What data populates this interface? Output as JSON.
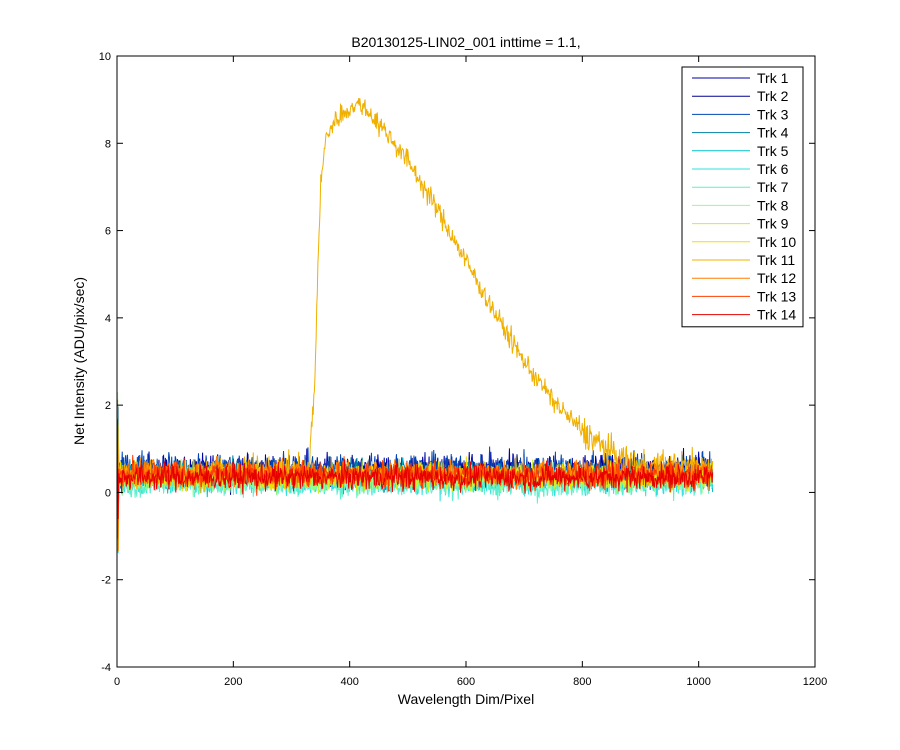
{
  "chart_data": {
    "type": "line",
    "title": "B20130125-LIN02_001 inttime = 1.1,",
    "xlabel": "Wavelength Dim/Pixel",
    "ylabel": "Net Intensity (ADU/pix/sec)",
    "xlim": [
      0,
      1200
    ],
    "ylim": [
      -4,
      10
    ],
    "x_ticks": [
      0,
      200,
      400,
      600,
      800,
      1000,
      1200
    ],
    "y_ticks": [
      -4,
      -2,
      0,
      2,
      4,
      6,
      8,
      10
    ],
    "x_tick_labels": [
      "0",
      "200",
      "400",
      "600",
      "800",
      "1000",
      "1200"
    ],
    "y_tick_labels": [
      "-4",
      "-2",
      "0",
      "2",
      "4",
      "6",
      "8",
      "10"
    ],
    "grid": false,
    "legend_position": "top-right",
    "series": [
      {
        "name": "Trk 1",
        "color": "#0000a6",
        "baseline": 0.5,
        "noise": 0.35
      },
      {
        "name": "Trk 2",
        "color": "#00008f",
        "baseline": 0.45,
        "noise": 0.3
      },
      {
        "name": "Trk 3",
        "color": "#0047b5",
        "baseline": 0.55,
        "noise": 0.35
      },
      {
        "name": "Trk 4",
        "color": "#007fa0",
        "baseline": 0.4,
        "noise": 0.3
      },
      {
        "name": "Trk 5",
        "color": "#00bfc8",
        "baseline": 0.35,
        "noise": 0.3
      },
      {
        "name": "Trk 6",
        "color": "#2fe0e0",
        "baseline": 0.25,
        "noise": 0.3
      },
      {
        "name": "Trk 7",
        "color": "#5fefcf",
        "baseline": 0.2,
        "noise": 0.3
      },
      {
        "name": "Trk 8",
        "color": "#8fff8f",
        "baseline": 0.3,
        "noise": 0.3
      },
      {
        "name": "Trk 9",
        "color": "#cfef2f",
        "baseline": 0.35,
        "noise": 0.3
      },
      {
        "name": "Trk 10",
        "color": "#efdf00",
        "baseline": 0.4,
        "noise": 0.3
      },
      {
        "name": "Trk 11",
        "color": "#f0b000",
        "baseline": 0.4,
        "noise": 0.35,
        "profile_x": [
          0,
          330,
          340,
          345,
          350,
          360,
          380,
          400,
          420,
          440,
          460,
          500,
          550,
          600,
          650,
          700,
          750,
          800,
          850,
          880,
          900,
          1024
        ],
        "profile_y": [
          0.4,
          0.5,
          2.5,
          5.0,
          7.0,
          8.2,
          8.6,
          8.8,
          8.9,
          8.6,
          8.3,
          7.6,
          6.5,
          5.3,
          4.1,
          3.0,
          2.1,
          1.4,
          0.9,
          0.7,
          0.6,
          0.6
        ]
      },
      {
        "name": "Trk 12",
        "color": "#ff7f00",
        "baseline": 0.45,
        "noise": 0.3
      },
      {
        "name": "Trk 13",
        "color": "#ff3f00",
        "baseline": 0.4,
        "noise": 0.3
      },
      {
        "name": "Trk 14",
        "color": "#e60000",
        "baseline": 0.35,
        "noise": 0.3
      }
    ],
    "x_range_data": [
      0,
      1024
    ],
    "n_points": 1024
  }
}
